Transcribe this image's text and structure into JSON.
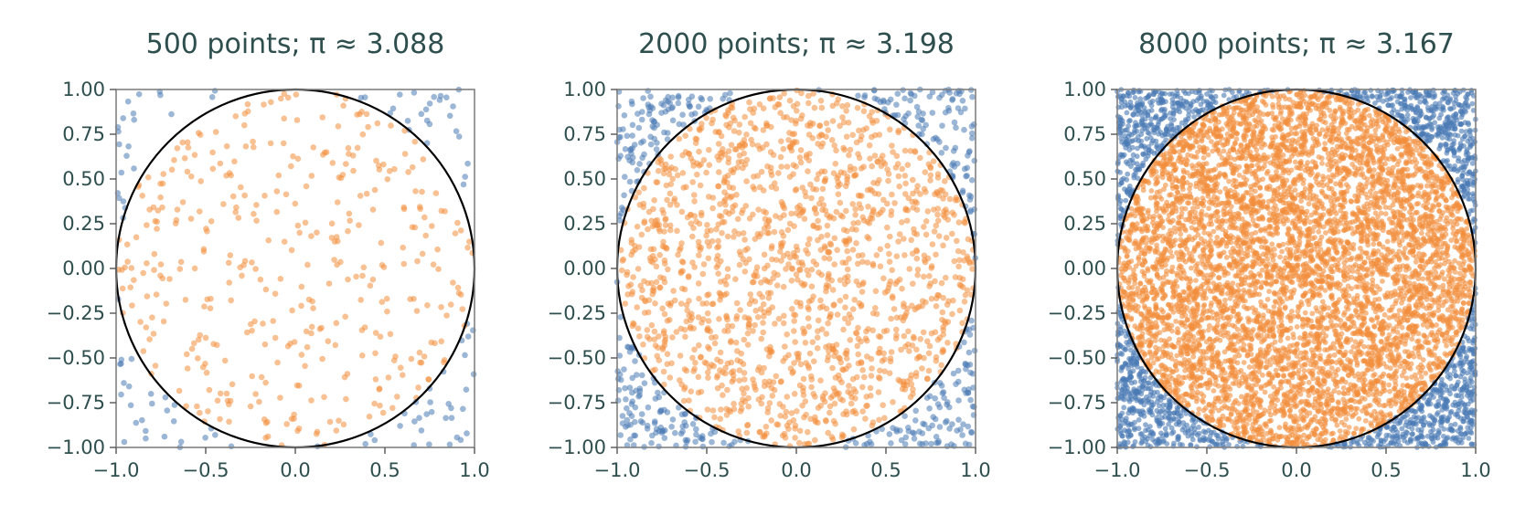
{
  "colors": {
    "inside": "#f28e3c",
    "outside": "#4a7ab4",
    "circle": "#000000",
    "text": "#2f4f4f"
  },
  "chart_data": [
    {
      "type": "scatter",
      "title": "500 points; π ≈ 3.088",
      "n_points": 500,
      "pi_estimate": 3.088,
      "xlim": [
        -1.0,
        1.0
      ],
      "ylim": [
        -1.0,
        1.0
      ],
      "xticks": [
        "−1.0",
        "−0.5",
        "0.0",
        "0.5",
        "1.0"
      ],
      "yticks": [
        "1.00",
        "0.75",
        "0.50",
        "0.25",
        "0.00",
        "−0.25",
        "−0.50",
        "−0.75",
        "−1.00"
      ],
      "series": [
        {
          "name": "",
          "color": "#f28e3c",
          "description": "points inside unit circle"
        },
        {
          "name": "",
          "color": "#4a7ab4",
          "description": "points outside unit circle"
        }
      ],
      "grid": false
    },
    {
      "type": "scatter",
      "title": "2000 points; π ≈ 3.198",
      "n_points": 2000,
      "pi_estimate": 3.198,
      "xlim": [
        -1.0,
        1.0
      ],
      "ylim": [
        -1.0,
        1.0
      ],
      "xticks": [
        "−1.0",
        "−0.5",
        "0.0",
        "0.5",
        "1.0"
      ],
      "yticks": [
        "1.00",
        "0.75",
        "0.50",
        "0.25",
        "0.00",
        "−0.25",
        "−0.50",
        "−0.75",
        "−1.00"
      ],
      "series": [
        {
          "name": "",
          "color": "#f28e3c",
          "description": "points inside unit circle"
        },
        {
          "name": "",
          "color": "#4a7ab4",
          "description": "points outside unit circle"
        }
      ],
      "grid": false
    },
    {
      "type": "scatter",
      "title": "8000 points; π ≈ 3.167",
      "n_points": 8000,
      "pi_estimate": 3.167,
      "xlim": [
        -1.0,
        1.0
      ],
      "ylim": [
        -1.0,
        1.0
      ],
      "xticks": [
        "−1.0",
        "−0.5",
        "0.0",
        "0.5",
        "1.0"
      ],
      "yticks": [
        "1.00",
        "0.75",
        "0.50",
        "0.25",
        "0.00",
        "−0.25",
        "−0.50",
        "−0.75",
        "−1.00"
      ],
      "series": [
        {
          "name": "",
          "color": "#f28e3c",
          "description": "points inside unit circle"
        },
        {
          "name": "",
          "color": "#4a7ab4",
          "description": "points outside unit circle"
        }
      ],
      "grid": false
    }
  ]
}
